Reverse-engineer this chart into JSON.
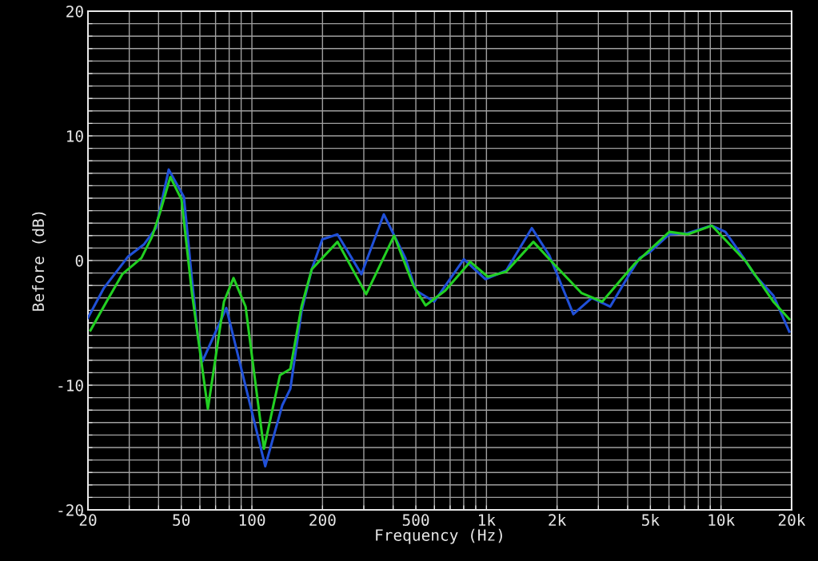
{
  "chart_data": {
    "type": "line",
    "xlabel": "Frequency (Hz)",
    "ylabel": "Before (dB)",
    "log": "x",
    "grid": true,
    "marker": "none",
    "line_style": "solid",
    "xlim": [
      20,
      20000
    ],
    "ylim": [
      -20,
      20
    ],
    "xticks": [
      20,
      {
        "value": 30,
        "label": null
      },
      {
        "value": 40,
        "label": null
      },
      50,
      {
        "value": 60,
        "label": null
      },
      {
        "value": 70,
        "label": null
      },
      {
        "value": 80,
        "label": null
      },
      {
        "value": 90,
        "label": null
      },
      100,
      200,
      {
        "value": 300,
        "label": null
      },
      {
        "value": 400,
        "label": null
      },
      500,
      {
        "value": 600,
        "label": null
      },
      {
        "value": 700,
        "label": null
      },
      {
        "value": 800,
        "label": null
      },
      {
        "value": 900,
        "label": null
      },
      {
        "value": 1000,
        "label": "1k"
      },
      {
        "value": 2000,
        "label": "2k"
      },
      {
        "value": 3000,
        "label": null
      },
      {
        "value": 4000,
        "label": null
      },
      {
        "value": 5000,
        "label": "5k"
      },
      {
        "value": 6000,
        "label": null
      },
      {
        "value": 7000,
        "label": null
      },
      {
        "value": 8000,
        "label": null
      },
      {
        "value": 9000,
        "label": null
      },
      {
        "value": 10000,
        "label": "10k"
      },
      {
        "value": 20000,
        "label": "20k"
      }
    ],
    "yticks": [
      -20,
      {
        "value": -19,
        "label": null
      },
      {
        "value": -18,
        "label": null
      },
      {
        "value": -17,
        "label": null
      },
      {
        "value": -16,
        "label": null
      },
      {
        "value": -15,
        "label": null
      },
      {
        "value": -14,
        "label": null
      },
      {
        "value": -13,
        "label": null
      },
      {
        "value": -12,
        "label": null
      },
      {
        "value": -11,
        "label": null
      },
      -10,
      {
        "value": -9,
        "label": null
      },
      {
        "value": -8,
        "label": null
      },
      {
        "value": -7,
        "label": null
      },
      {
        "value": -6,
        "label": null
      },
      {
        "value": -5,
        "label": null
      },
      {
        "value": -4,
        "label": null
      },
      {
        "value": -3,
        "label": null
      },
      {
        "value": -2,
        "label": null
      },
      {
        "value": -1,
        "label": null
      },
      0,
      {
        "value": 1,
        "label": null
      },
      {
        "value": 2,
        "label": null
      },
      {
        "value": 3,
        "label": null
      },
      {
        "value": 4,
        "label": null
      },
      {
        "value": 5,
        "label": null
      },
      {
        "value": 6,
        "label": null
      },
      {
        "value": 7,
        "label": null
      },
      {
        "value": 8,
        "label": null
      },
      {
        "value": 9,
        "label": null
      },
      10,
      {
        "value": 11,
        "label": null
      },
      {
        "value": 12,
        "label": null
      },
      {
        "value": 13,
        "label": null
      },
      {
        "value": 14,
        "label": null
      },
      {
        "value": 15,
        "label": null
      },
      {
        "value": 16,
        "label": null
      },
      {
        "value": 17,
        "label": null
      },
      {
        "value": 18,
        "label": null
      },
      {
        "value": 19,
        "label": null
      },
      20
    ],
    "series": [
      {
        "color": "#2050d8",
        "x": [
          20,
          23.4,
          29.6,
          34.7,
          39,
          44.2,
          51.3,
          55.5,
          58.6,
          61.5,
          77.8,
          114,
          134.8,
          145.8,
          162.7,
          180,
          199.6,
          231.6,
          293,
          365,
          451,
          500,
          599,
          801,
          990,
          1214,
          1561,
          1855,
          2347,
          2812,
          3369,
          4067,
          4503,
          4988,
          6022,
          7213,
          9130,
          10435,
          12500,
          13840,
          16710,
          19550
        ],
        "values": [
          -4.6,
          -2.2,
          0.3,
          1.3,
          2.6,
          7.3,
          5.1,
          -1.5,
          -5.8,
          -8.1,
          -3.8,
          -16.5,
          -11.6,
          -10.3,
          -4.1,
          -0.7,
          1.7,
          2.1,
          -1.1,
          3.7,
          0.2,
          -2.4,
          -3.3,
          0.1,
          -1.5,
          -0.8,
          2.6,
          0.4,
          -4.3,
          -3.0,
          -3.7,
          -1.1,
          0.2,
          0.7,
          2.1,
          2.2,
          2.8,
          2.3,
          0.2,
          -1.1,
          -2.8,
          -5.7
        ]
      },
      {
        "color": "#22d022",
        "x": [
          20.5,
          24,
          28,
          33.8,
          37.5,
          40.5,
          44.9,
          50.1,
          55.5,
          64.9,
          76,
          83.5,
          94,
          112.5,
          131.7,
          145.8,
          162.7,
          180,
          231.6,
          307,
          404,
          488,
          550,
          668,
          853,
          1013,
          1214,
          1585,
          1944,
          2539,
          3115,
          4265,
          6022,
          7213,
          9130,
          12800,
          16710,
          19550
        ],
        "values": [
          -5.6,
          -3.3,
          -1.1,
          0.2,
          1.9,
          3.8,
          6.7,
          4.9,
          -2.6,
          -11.9,
          -3.3,
          -1.4,
          -3.7,
          -15.1,
          -9.2,
          -8.7,
          -3.7,
          -0.7,
          1.5,
          -2.7,
          2.0,
          -2.0,
          -3.6,
          -2.4,
          -0.1,
          -1.3,
          -0.9,
          1.5,
          -0.3,
          -2.6,
          -3.3,
          -0.3,
          2.3,
          2.1,
          2.8,
          -0.1,
          -3.3,
          -4.7
        ]
      }
    ]
  }
}
